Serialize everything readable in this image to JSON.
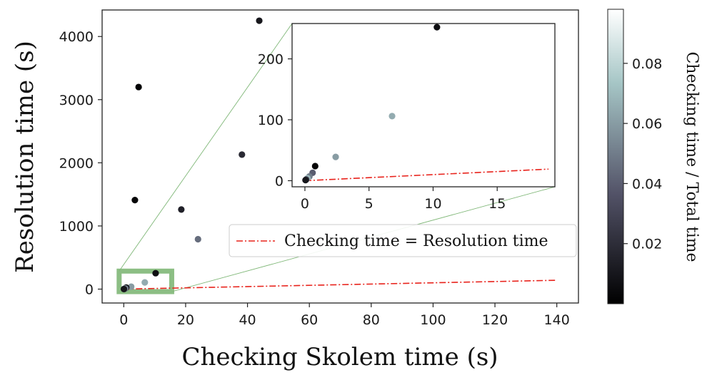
{
  "chart_data": {
    "type": "scatter",
    "xlabel": "Checking Skolem time (s)",
    "ylabel": "Resolution time (s)",
    "xlim": [
      -7,
      147
    ],
    "ylim": [
      -220,
      4420
    ],
    "xticks": [
      0,
      20,
      40,
      60,
      80,
      100,
      120,
      140
    ],
    "yticks": [
      0,
      1000,
      2000,
      3000,
      4000
    ],
    "points": [
      {
        "x": 43.8,
        "y": 4250,
        "ratio": 0.01
      },
      {
        "x": 4.8,
        "y": 3200,
        "ratio": 0.0015
      },
      {
        "x": 38.2,
        "y": 2130,
        "ratio": 0.018
      },
      {
        "x": 3.6,
        "y": 1410,
        "ratio": 0.0025
      },
      {
        "x": 18.6,
        "y": 1260,
        "ratio": 0.014
      },
      {
        "x": 24.0,
        "y": 790,
        "ratio": 0.045
      },
      {
        "x": 10.3,
        "y": 252,
        "ratio": 0.006
      },
      {
        "x": 6.8,
        "y": 106,
        "ratio": 0.065
      },
      {
        "x": 2.4,
        "y": 39,
        "ratio": 0.06
      },
      {
        "x": 0.8,
        "y": 24,
        "ratio": 0.002
      },
      {
        "x": 0.6,
        "y": 13,
        "ratio": 0.04
      },
      {
        "x": 0.35,
        "y": 7,
        "ratio": 0.05
      },
      {
        "x": 0.2,
        "y": 4,
        "ratio": 0.07
      },
      {
        "x": 0.1,
        "y": 2,
        "ratio": 0.03
      },
      {
        "x": 0.05,
        "y": 1,
        "ratio": 0.01
      }
    ],
    "reference_line": {
      "label": "Checking time = Resolution time",
      "x": [
        0,
        140
      ],
      "y": [
        0,
        140
      ],
      "color": "#e8231c"
    },
    "zoom_box": {
      "x": [
        -1.5,
        15.5
      ],
      "y": [
        -40,
        285
      ],
      "color": "#7fb777"
    },
    "inset": {
      "xlim": [
        -1,
        19.5
      ],
      "ylim": [
        -10,
        258
      ],
      "xticks": [
        0,
        5,
        10,
        15
      ],
      "yticks": [
        0,
        100,
        200
      ],
      "reference_line": {
        "x": [
          0,
          19
        ],
        "y": [
          0,
          19
        ]
      }
    },
    "colorbar": {
      "label": "Checking time / Total time",
      "min": 0.0,
      "max": 0.098,
      "ticks": [
        0.02,
        0.04,
        0.06,
        0.08
      ],
      "colormap": "bone"
    },
    "legend": {
      "position": "center-right",
      "entries": [
        "Checking time = Resolution time"
      ]
    }
  }
}
